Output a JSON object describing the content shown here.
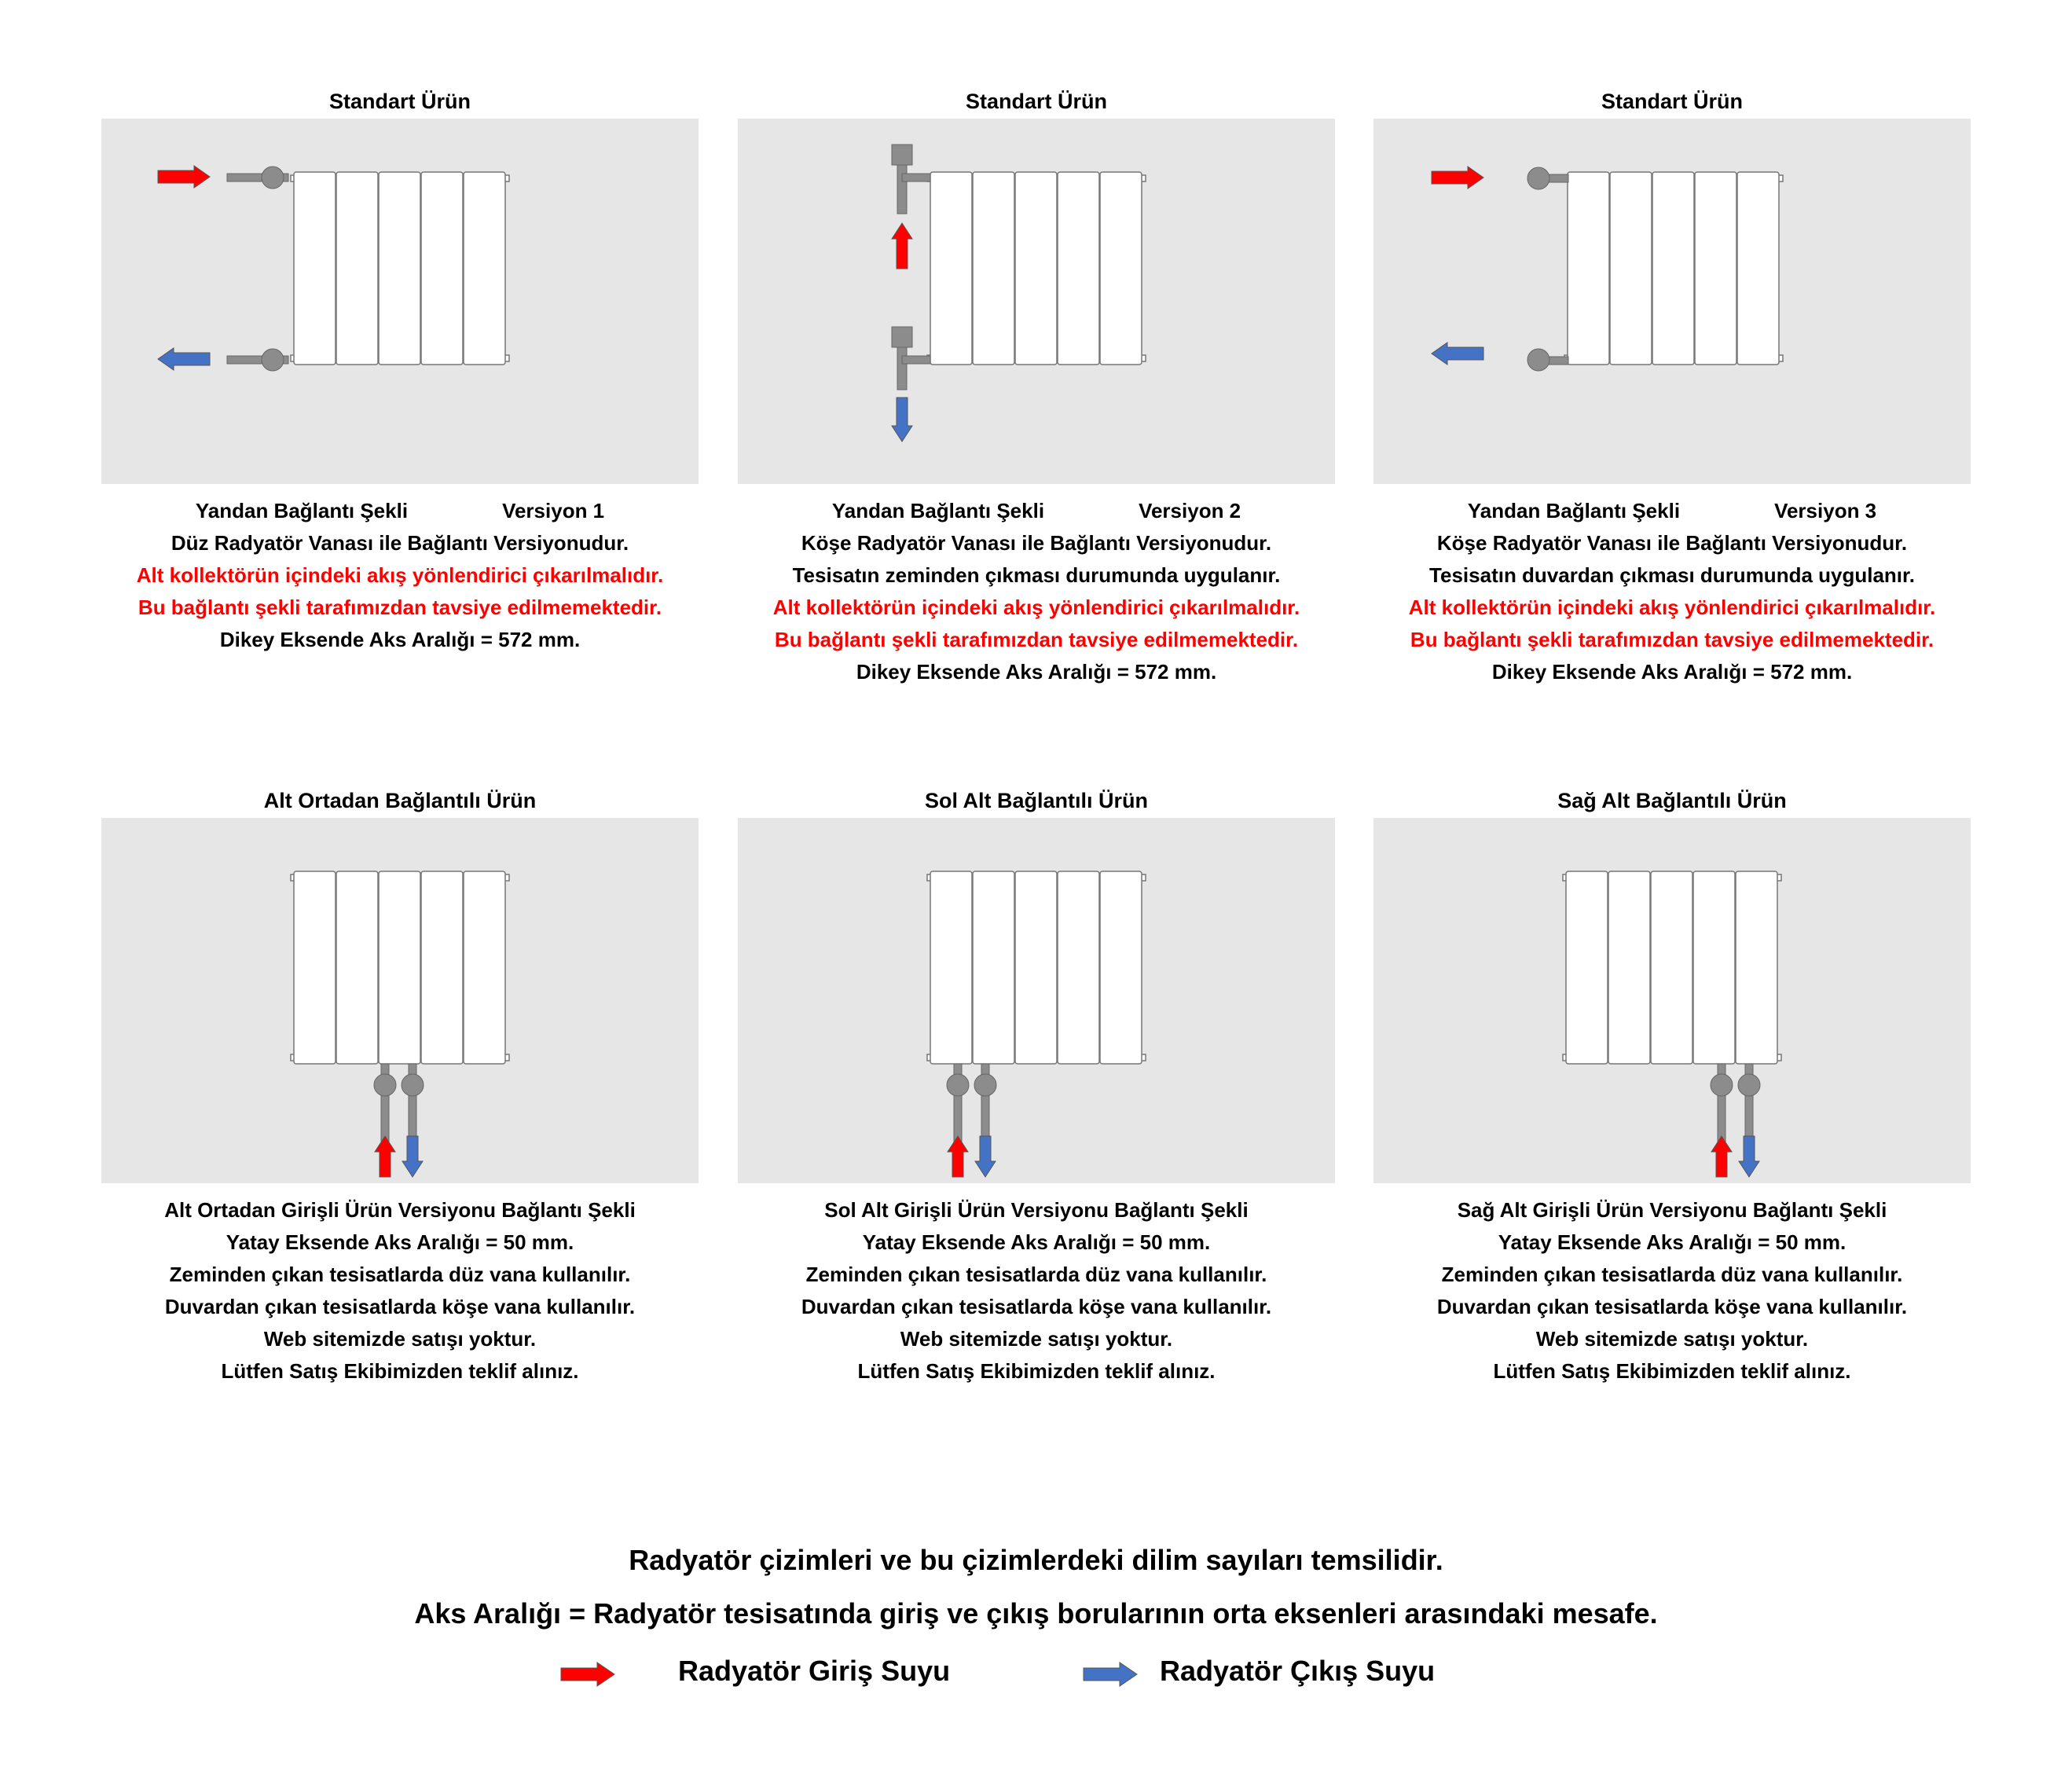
{
  "colors": {
    "inlet": "#ff0000",
    "outlet": "#4472c4",
    "panel": "#e6e6e6",
    "pipe": "#8c8c8c"
  },
  "panels": [
    {
      "title": "Standart  Ürün",
      "connection": "side-straight",
      "lines": [
        {
          "parts": [
            "Yandan  Bağlantı  Şekli",
            "Versiyon 1"
          ],
          "red": false
        },
        {
          "text": "Düz  Radyatör  Vanası  ile  Bağlantı  Versiyonudur.",
          "red": false
        },
        {
          "text": "Alt kollektörün içindeki akış yönlendirici çıkarılmalıdır.",
          "red": true
        },
        {
          "text": "Bu bağlantı şekli  tarafımızdan tavsiye edilmemektedir.",
          "red": true
        },
        {
          "text": "Dikey  Eksende  Aks  Aralığı = 572 mm.",
          "red": false
        }
      ]
    },
    {
      "title": "Standart  Ürün",
      "connection": "side-floor-corner",
      "lines": [
        {
          "parts": [
            "Yandan  Bağlantı  Şekli",
            "Versiyon 2"
          ],
          "red": false
        },
        {
          "text": "Köşe  Radyatör  Vanası  ile  Bağlantı  Versiyonudur.",
          "red": false
        },
        {
          "text": "Tesisatın  zeminden  çıkması  durumunda  uygulanır.",
          "red": false
        },
        {
          "text": "Alt kollektörün içindeki akış yönlendirici çıkarılmalıdır.",
          "red": true
        },
        {
          "text": "Bu bağlantı şekli  tarafımızdan tavsiye edilmemektedir.",
          "red": true
        },
        {
          "text": "Dikey  Eksende  Aks  Aralığı = 572 mm.",
          "red": false
        }
      ]
    },
    {
      "title": "Standart  Ürün",
      "connection": "side-wall-corner",
      "lines": [
        {
          "parts": [
            "Yandan  Bağlantı  Şekli",
            "Versiyon 3"
          ],
          "red": false
        },
        {
          "text": "Köşe  Radyatör  Vanası  ile  Bağlantı  Versiyonudur.",
          "red": false
        },
        {
          "text": "Tesisatın  duvardan  çıkması  durumunda  uygulanır.",
          "red": false
        },
        {
          "text": "Alt kollektörün içindeki akış yönlendirici çıkarılmalıdır.",
          "red": true
        },
        {
          "text": "Bu bağlantı şekli  tarafımızdan tavsiye edilmemektedir.",
          "red": true
        },
        {
          "text": "Dikey  Eksende  Aks  Aralığı = 572 mm.",
          "red": false
        }
      ]
    },
    {
      "title": "Alt  Ortadan  Bağlantılı  Ürün",
      "connection": "bottom-middle",
      "lines": [
        {
          "text": "Alt  Ortadan  Girişli  Ürün  Versiyonu  Bağlantı  Şekli",
          "red": false
        },
        {
          "text": "Yatay  Eksende  Aks  Aralığı  =  50 mm.",
          "red": false
        },
        {
          "text": "Zeminden  çıkan  tesisatlarda  düz  vana  kullanılır.",
          "red": false
        },
        {
          "text": "Duvardan  çıkan  tesisatlarda  köşe  vana  kullanılır.",
          "red": false
        },
        {
          "text": "Web  sitemizde  satışı  yoktur.",
          "red": false
        },
        {
          "text": "Lütfen  Satış  Ekibimizden  teklif  alınız.",
          "red": false
        }
      ]
    },
    {
      "title": "Sol  Alt  Bağlantılı  Ürün",
      "connection": "bottom-left",
      "lines": [
        {
          "text": "Sol  Alt  Girişli  Ürün  Versiyonu  Bağlantı  Şekli",
          "red": false
        },
        {
          "text": "Yatay  Eksende  Aks  Aralığı  =  50 mm.",
          "red": false
        },
        {
          "text": "Zeminden  çıkan  tesisatlarda  düz  vana  kullanılır.",
          "red": false
        },
        {
          "text": "Duvardan  çıkan  tesisatlarda  köşe  vana  kullanılır.",
          "red": false
        },
        {
          "text": "Web  sitemizde  satışı  yoktur.",
          "red": false
        },
        {
          "text": "Lütfen  Satış  Ekibimizden  teklif  alınız.",
          "red": false
        }
      ]
    },
    {
      "title": "Sağ  Alt  Bağlantılı  Ürün",
      "connection": "bottom-right",
      "lines": [
        {
          "text": "Sağ  Alt  Girişli  Ürün  Versiyonu  Bağlantı  Şekli",
          "red": false
        },
        {
          "text": "Yatay  Eksende  Aks  Aralığı  =  50 mm.",
          "red": false
        },
        {
          "text": "Zeminden  çıkan  tesisatlarda  düz  vana  kullanılır.",
          "red": false
        },
        {
          "text": "Duvardan  çıkan  tesisatlarda  köşe  vana  kullanılır.",
          "red": false
        },
        {
          "text": "Web  sitemizde  satışı  yoktur.",
          "red": false
        },
        {
          "text": "Lütfen  Satış  Ekibimizden  teklif  alınız.",
          "red": false
        }
      ]
    }
  ],
  "footer": {
    "note1": "Radyatör  çizimleri  ve  bu  çizimlerdeki  dilim  sayıları  temsilidir.",
    "note2": "Aks  Aralığı  =  Radyatör  tesisatında  giriş  ve  çıkış  borularının  orta  eksenleri  arasındaki  mesafe.",
    "legend_inlet": "Radyatör  Giriş  Suyu",
    "legend_outlet": "Radyatör  Çıkış  Suyu"
  }
}
